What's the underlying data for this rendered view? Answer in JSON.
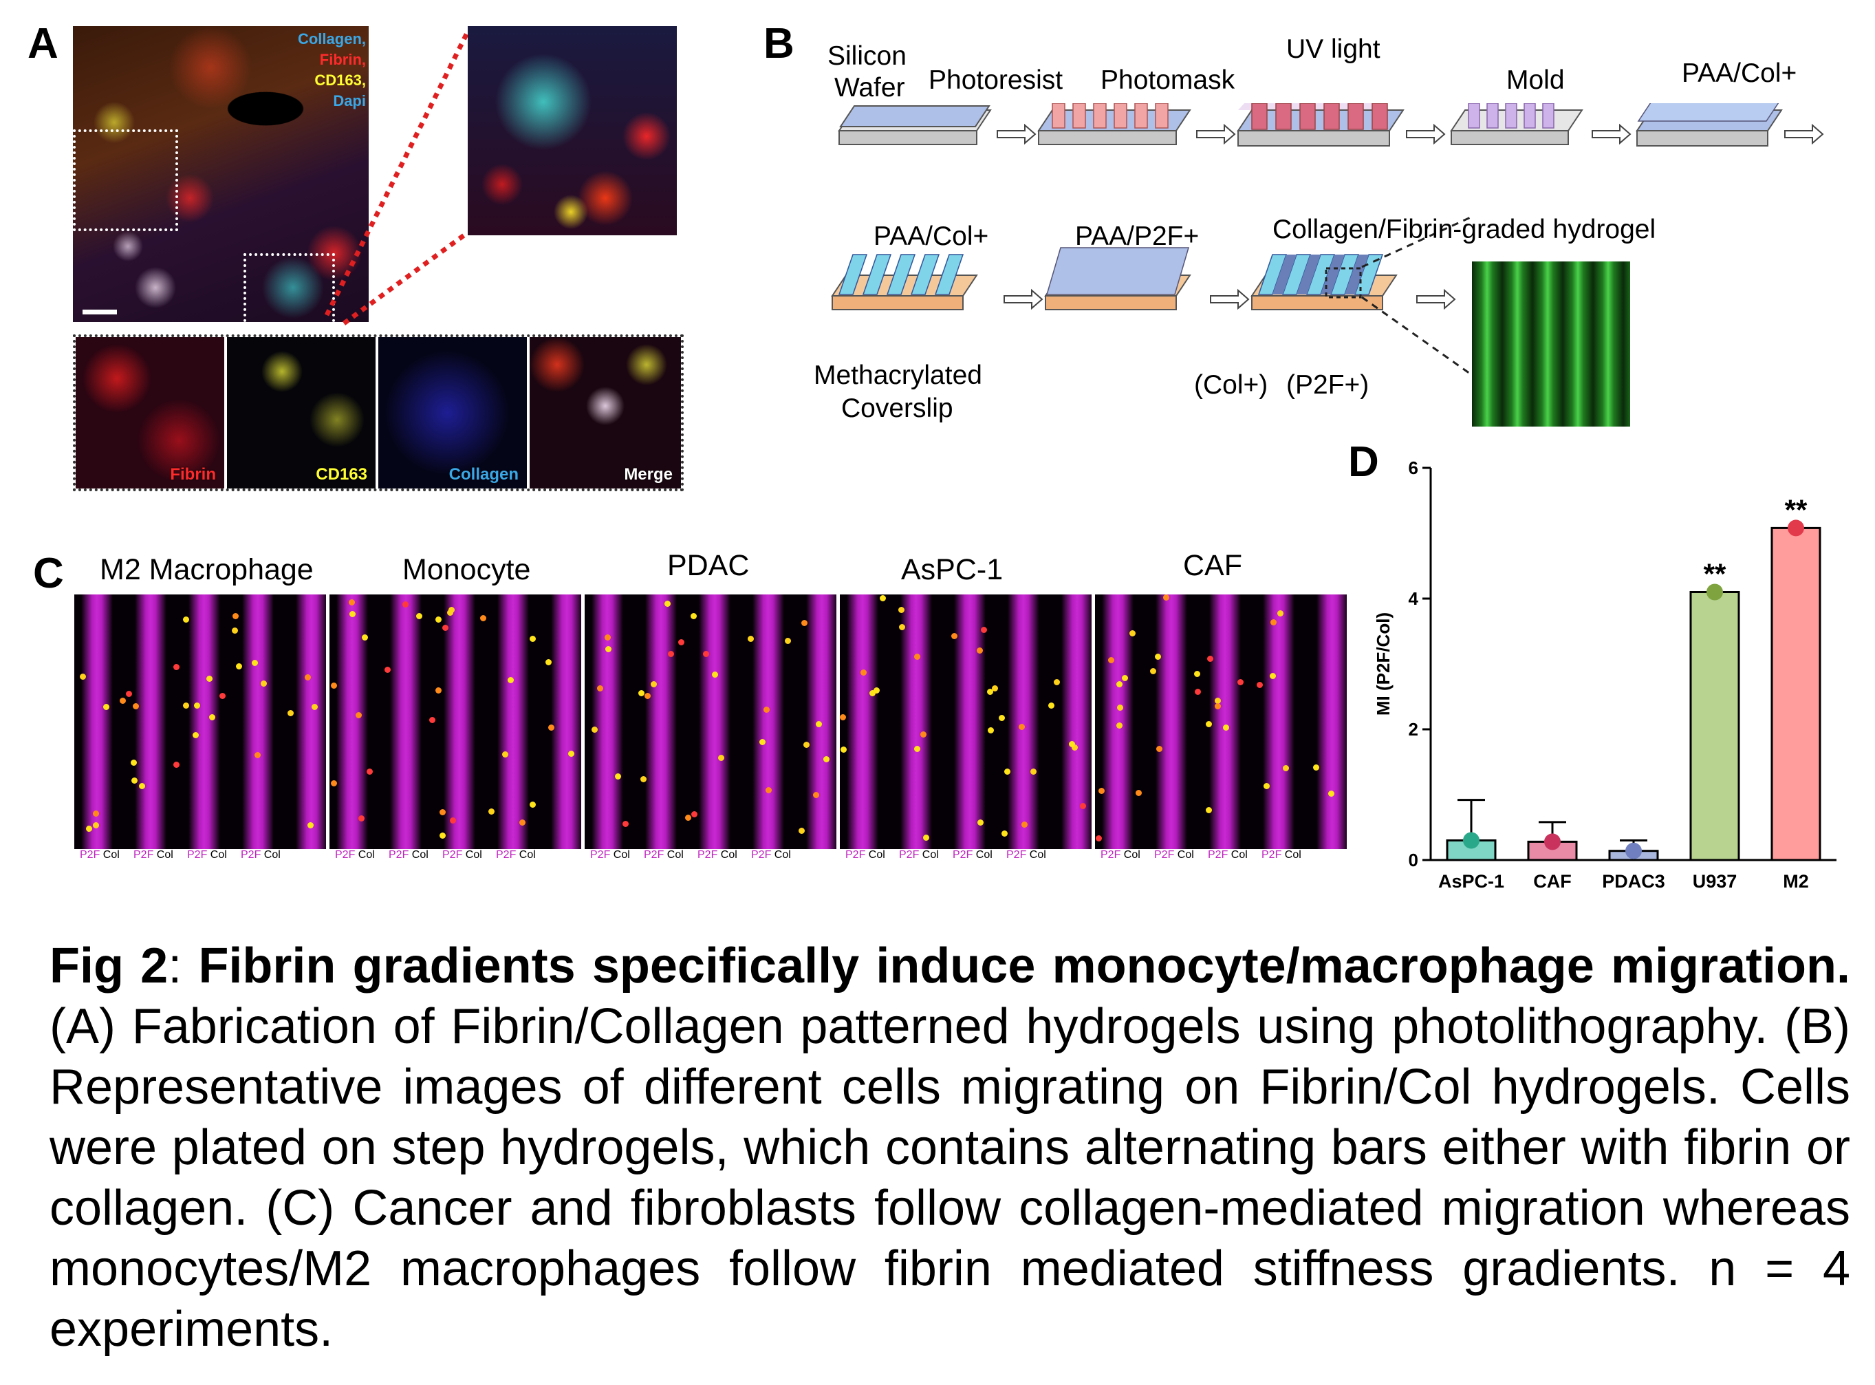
{
  "panels": {
    "a": "A",
    "b": "B",
    "c": "C",
    "d": "D"
  },
  "panelA": {
    "legend": [
      {
        "text": "Collagen,",
        "color": "#3aa7e6"
      },
      {
        "text": "Fibrin,",
        "color": "#ff2b2b"
      },
      {
        "text": "CD163,",
        "color": "#ffff33"
      },
      {
        "text": "Dapi",
        "color": "#3aa7e6"
      }
    ],
    "channels": [
      {
        "label": "Fibrin",
        "color": "#ff2b2b"
      },
      {
        "label": "CD163",
        "color": "#ffff33"
      },
      {
        "label": "Collagen",
        "color": "#3aa7e6"
      },
      {
        "label": "Merge",
        "color": "#ffffff"
      }
    ]
  },
  "panelB": {
    "row1": [
      "Silicon",
      "Wafer",
      "Photoresist",
      "Photomask",
      "UV light",
      "Mold",
      "PAA/Col+"
    ],
    "row2": [
      "PAA/Col+",
      "PAA/P2F+",
      "Collagen/Fibrin-graded hydrogel",
      "Methacrylated",
      "Coverslip",
      "(Col+)",
      "(P2F+)"
    ]
  },
  "panelC": {
    "titles": [
      "M2 Macrophage",
      "Monocyte",
      "PDAC",
      "AsPC-1",
      "CAF"
    ],
    "p2f": "P2F",
    "col": "Col"
  },
  "chart_data": {
    "type": "bar",
    "categories": [
      "AsPC-1",
      "CAF",
      "PDAC3",
      "U937",
      "M2"
    ],
    "values": [
      0.3,
      0.28,
      0.14,
      4.1,
      5.08
    ],
    "errors": [
      0.62,
      0.3,
      0.16,
      0,
      0
    ],
    "colors": [
      "#7fd6c4",
      "#e98aa6",
      "#a9b6de",
      "#b7d38f",
      "#ff9c9c"
    ],
    "marker_colors": [
      "#2aa88a",
      "#c8325d",
      "#6f7fbf",
      "#7fa33f",
      "#e23a4a"
    ],
    "annotations": [
      "",
      "",
      "",
      "**",
      "**"
    ],
    "ylabel": "MI (P2F/Col)",
    "ylim": [
      0,
      6
    ],
    "yticks": [
      0,
      2,
      4,
      6
    ]
  },
  "caption": {
    "lead": "Fig 2",
    "colon": ": ",
    "title": "Fibrin gradients specifically induce monocyte/macrophage migration.",
    "body": " (A) Fabrication of Fibrin/Collagen patterned hydrogels using photolithography. (B) Representative images of different cells migrating on Fibrin/Col hydrogels. Cells were plated on step hydrogels, which contains alternating bars either with fibrin or collagen. (C) Cancer and fibroblasts follow collagen-mediated migration whereas monocytes/M2 macrophages follow fibrin mediated stiffness gradients. n = 4 experiments."
  }
}
